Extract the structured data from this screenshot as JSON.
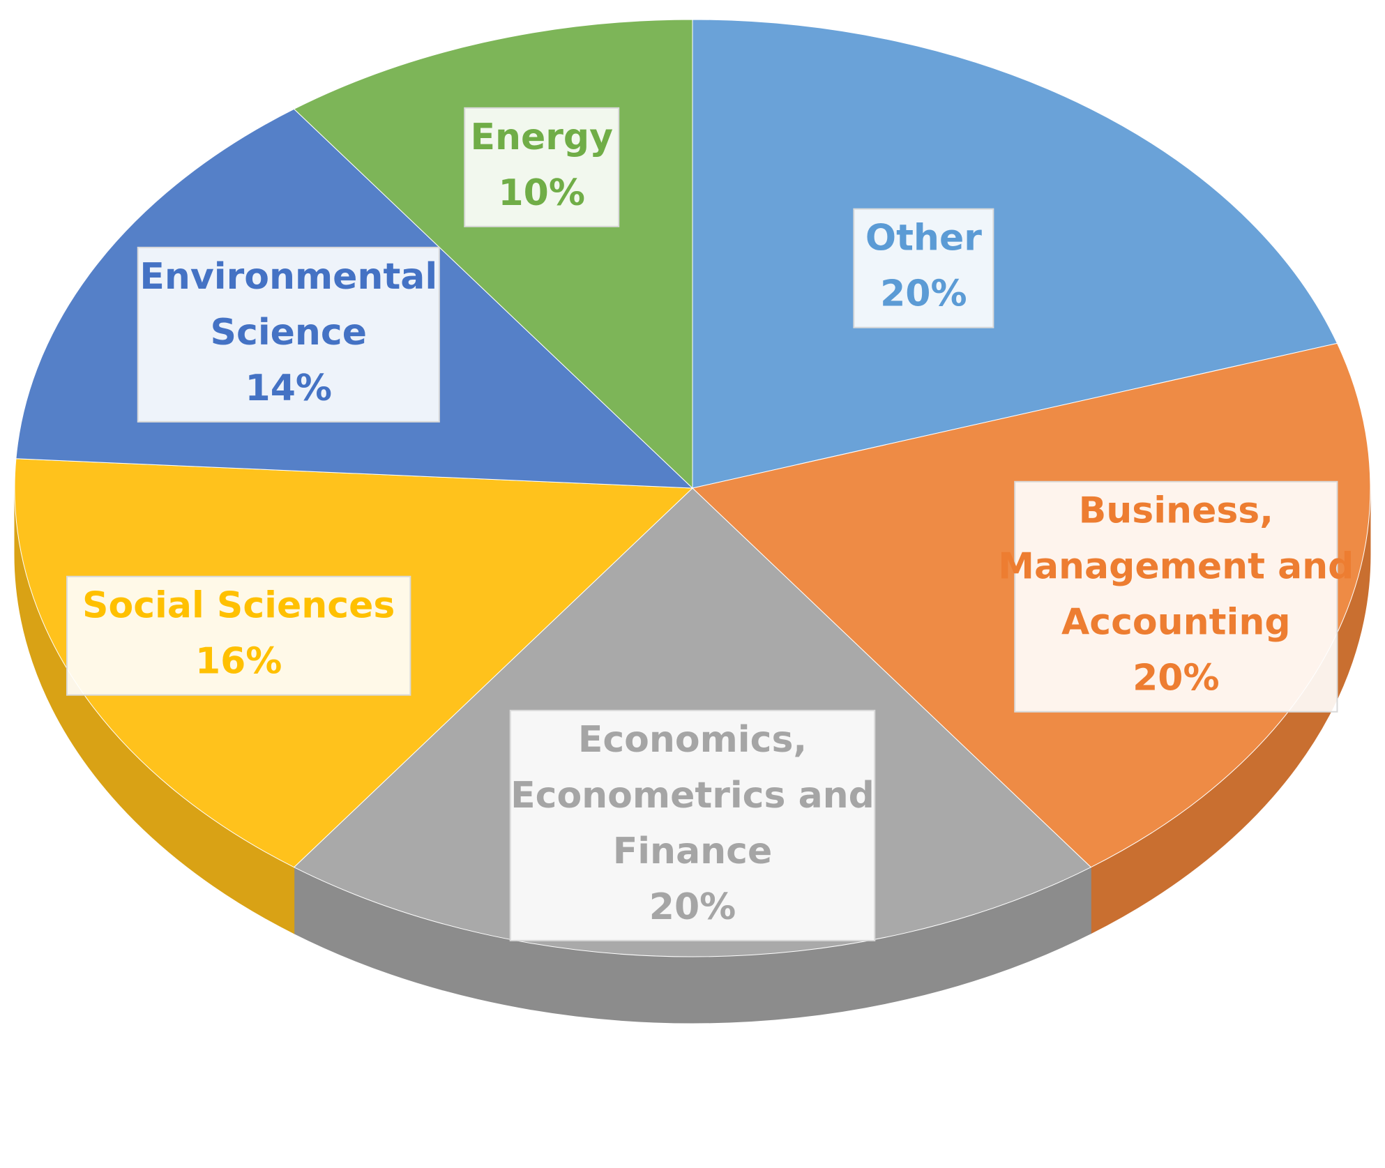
{
  "chart_data": {
    "type": "pie",
    "style": "3d-tilted",
    "legend": "none",
    "slices": [
      {
        "label_lines": [
          "Other"
        ],
        "value": 20,
        "value_label": "20%",
        "color": "#6AA2D8",
        "side_color": "#4F86BD",
        "text_color": "#5B9BD5"
      },
      {
        "label_lines": [
          "Business,",
          "Management and",
          "Accounting"
        ],
        "value": 20,
        "value_label": "20%",
        "color": "#EE8B45",
        "side_color": "#C96F30",
        "text_color": "#ED7D31"
      },
      {
        "label_lines": [
          "Economics,",
          "Econometrics and",
          "Finance"
        ],
        "value": 20,
        "value_label": "20%",
        "color": "#A9A9A9",
        "side_color": "#8C8C8C",
        "text_color": "#A5A5A5"
      },
      {
        "label_lines": [
          "Social Sciences"
        ],
        "value": 16,
        "value_label": "16%",
        "color": "#FFC21C",
        "side_color": "#D9A215",
        "text_color": "#FFC000"
      },
      {
        "label_lines": [
          "Environmental",
          "Science"
        ],
        "value": 14,
        "value_label": "14%",
        "color": "#5580C8",
        "side_color": "#3E66A8",
        "text_color": "#4472C4"
      },
      {
        "label_lines": [
          "Energy"
        ],
        "value": 10,
        "value_label": "10%",
        "color": "#7DB558",
        "side_color": "#5E9140",
        "text_color": "#70AD47"
      }
    ]
  }
}
